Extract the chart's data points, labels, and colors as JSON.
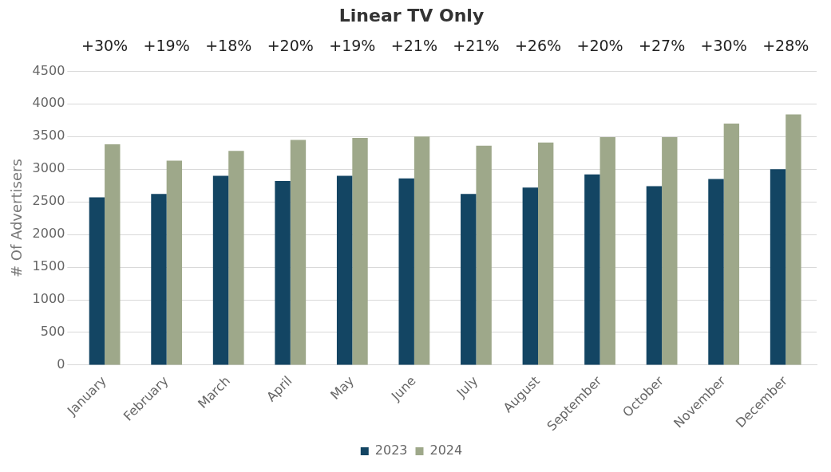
{
  "chart_data": {
    "type": "bar",
    "title": "Linear TV Only",
    "ylabel": "# Of Advertisers",
    "categories": [
      "January",
      "February",
      "March",
      "April",
      "May",
      "June",
      "July",
      "August",
      "September",
      "October",
      "November",
      "December"
    ],
    "series": [
      {
        "name": "2023",
        "color": "#134563",
        "values": [
          2570,
          2620,
          2900,
          2820,
          2900,
          2860,
          2620,
          2720,
          2920,
          2740,
          2850,
          3000
        ]
      },
      {
        "name": "2024",
        "color": "#9ea88a",
        "values": [
          3380,
          3130,
          3280,
          3450,
          3480,
          3500,
          3360,
          3410,
          3490,
          3490,
          3700,
          3840
        ]
      }
    ],
    "ylim": [
      0,
      4500
    ],
    "yticks": [
      0,
      500,
      1000,
      1500,
      2000,
      2500,
      3000,
      3500,
      4000,
      4500
    ],
    "grid": "y",
    "legend": "bottom",
    "annotations": [
      "+30%",
      "+19%",
      "+18%",
      "+20%",
      "+19%",
      "+21%",
      "+21%",
      "+26%",
      "+20%",
      "+27%",
      "+30%",
      "+28%"
    ]
  }
}
